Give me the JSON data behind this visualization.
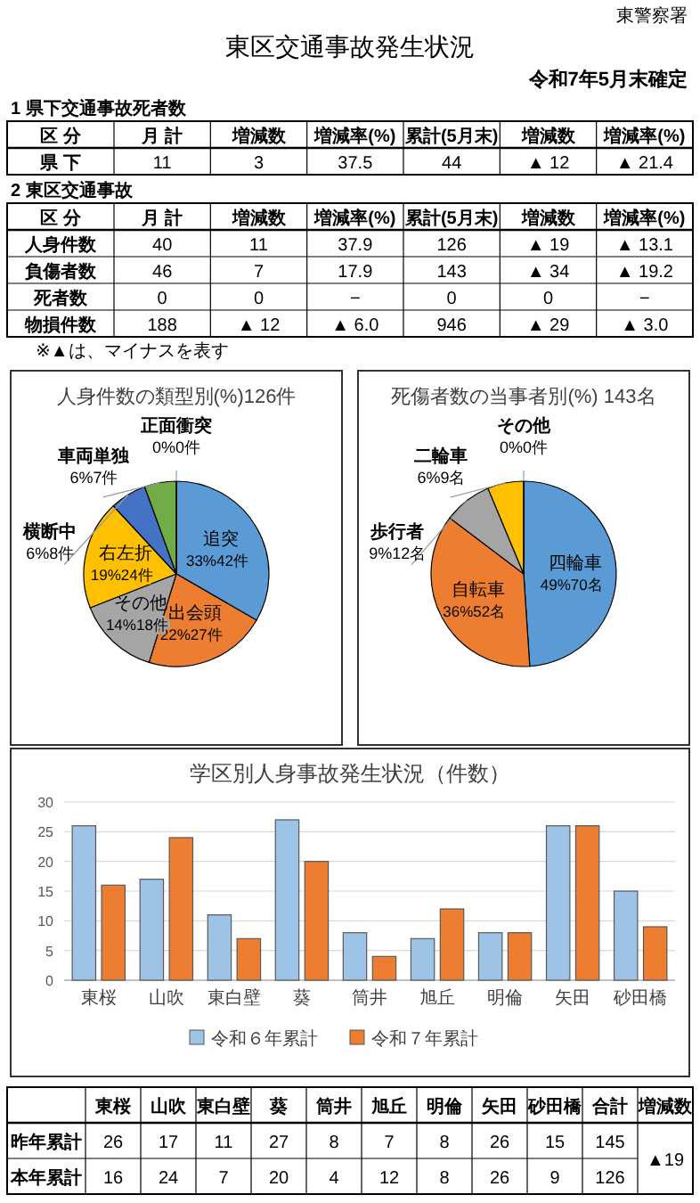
{
  "chart_data": [
    {
      "type": "other",
      "title": "東区交通事故発生状況",
      "subtitle": "令和7年5月末確定",
      "annotations": [
        "東警察署"
      ]
    },
    {
      "type": "other",
      "title": "1 県下交通事故死者数",
      "ylabel": "区 分",
      "categories": [
        "月 計",
        "増減数",
        "増減率(%)",
        "累計(5月末)",
        "増減数",
        "増減率(%)"
      ],
      "y_categories": [
        "県 下"
      ],
      "cell_labels": [
        [
          "11",
          "3",
          "37.5",
          "44",
          "▲ 12",
          "▲ 21.4"
        ]
      ]
    },
    {
      "type": "other",
      "title": "2 東区交通事故",
      "ylabel": "区 分",
      "categories": [
        "月 計",
        "増減数",
        "増減率(%)",
        "累計(5月末)",
        "増減数",
        "増減率(%)"
      ],
      "y_categories": [
        "人身件数",
        "負傷者数",
        "死者数",
        "物損件数"
      ],
      "cell_labels": [
        [
          "40",
          "11",
          "37.9",
          "126",
          "▲ 19",
          "▲ 13.1"
        ],
        [
          "46",
          "7",
          "17.9",
          "143",
          "▲ 34",
          "▲ 19.2"
        ],
        [
          "0",
          "0",
          "−",
          "0",
          "0",
          "−"
        ],
        [
          "188",
          "▲ 12",
          "▲ 6.0",
          "946",
          "▲ 29",
          "▲ 3.0"
        ]
      ],
      "annotations": [
        "※▲は、マイナスを表す"
      ]
    },
    {
      "type": "pie",
      "title": "人身件数の類型別(%)126件",
      "categories": [
        "追突",
        "出会頭",
        "その他",
        "右左折",
        "横断中",
        "車両単独",
        "正面衝突"
      ],
      "values": [
        42,
        27,
        18,
        24,
        8,
        7,
        0
      ],
      "colors": [
        "#5b9bd5",
        "#ed7d31",
        "#a5a5a5",
        "#ffc000",
        "#4472c4",
        "#70ad47",
        "#264478"
      ],
      "value_labels": [
        "33%42件",
        "22%27件",
        "14%18件",
        "19%24件",
        "6%8件",
        "6%7件",
        "0%0件"
      ]
    },
    {
      "type": "pie",
      "title": "死傷者数の当事者別(%) 143名",
      "categories": [
        "四輪車",
        "自転車",
        "歩行者",
        "二輪車",
        "その他"
      ],
      "values": [
        70,
        52,
        12,
        9,
        0
      ],
      "colors": [
        "#5b9bd5",
        "#ed7d31",
        "#a5a5a5",
        "#ffc000",
        "#4472c4"
      ],
      "value_labels": [
        "49%70名",
        "36%52名",
        "9%12名",
        "6%9名",
        "0%0件"
      ]
    },
    {
      "type": "bar",
      "title": "学区別人身事故発生状況（件数）",
      "categories": [
        "東桜",
        "山吹",
        "東白壁",
        "葵",
        "筒井",
        "旭丘",
        "明倫",
        "矢田",
        "砂田橋"
      ],
      "series": [
        {
          "name": "令和６年累計",
          "color": "#9dc3e6",
          "values": [
            26,
            17,
            11,
            27,
            8,
            7,
            8,
            26,
            15
          ]
        },
        {
          "name": "令和７年累計",
          "color": "#ed7d31",
          "values": [
            16,
            24,
            7,
            20,
            4,
            12,
            8,
            26,
            9
          ]
        }
      ],
      "ylim": [
        0,
        30
      ],
      "yticks": [
        0,
        5,
        10,
        15,
        20,
        25,
        30
      ],
      "grid": "y",
      "legend": "bottom"
    },
    {
      "type": "other",
      "categories": [
        "東桜",
        "山吹",
        "東白壁",
        "葵",
        "筒井",
        "旭丘",
        "明倫",
        "矢田",
        "砂田橋",
        "合計",
        "増減数"
      ],
      "y_categories": [
        "昨年累計",
        "本年累計"
      ],
      "cell_labels": [
        [
          "26",
          "17",
          "11",
          "27",
          "8",
          "7",
          "8",
          "26",
          "15",
          "145",
          "▲19"
        ],
        [
          "16",
          "24",
          "7",
          "20",
          "4",
          "12",
          "8",
          "26",
          "9",
          "126",
          null
        ]
      ]
    }
  ]
}
